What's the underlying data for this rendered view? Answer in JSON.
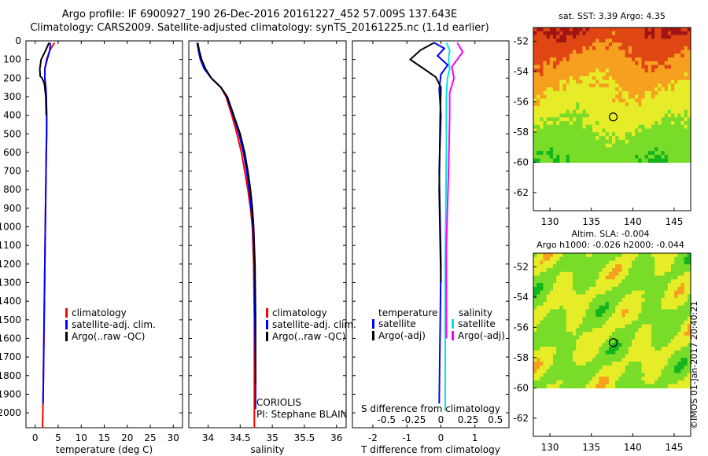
{
  "header": {
    "line1": "Argo profile: IF 6900927_190 26-Dec-2016 20161227_452 57.009S 137.643E",
    "line2": "Climatology: CARS2009. Satellite-adjusted climatology: synTS_20161225.nc (1.1d earlier)"
  },
  "chart_data": [
    {
      "type": "line",
      "name": "temperature-profile",
      "xlabel": "temperature (deg C)",
      "ylabel": "",
      "xlim": [
        -2,
        32
      ],
      "ylim": [
        2080,
        0
      ],
      "xticks": [
        0,
        5,
        10,
        15,
        20,
        25,
        30
      ],
      "yticks": [
        0,
        100,
        200,
        300,
        400,
        500,
        600,
        700,
        800,
        900,
        1000,
        1100,
        1200,
        1300,
        1400,
        1500,
        1600,
        1700,
        1800,
        1900,
        2000
      ],
      "legend": [
        "climatology",
        "satellite-adj. clim.",
        "Argo(..raw -QC)"
      ],
      "series": [
        {
          "name": "climatology",
          "color": "#ff0000",
          "x": [
            4.2,
            3.2,
            2.5,
            2.1,
            2.1,
            2.3,
            2.4,
            2.5,
            2.5,
            2.4,
            2.3,
            2.2,
            2.1,
            2.0,
            1.9,
            1.8,
            1.7,
            1.6
          ],
          "y": [
            10,
            50,
            100,
            150,
            200,
            250,
            300,
            400,
            500,
            600,
            800,
            1000,
            1200,
            1400,
            1600,
            1800,
            1950,
            2080
          ]
        },
        {
          "name": "satellite-adj. clim.",
          "color": "#0000ff",
          "x": [
            3.3,
            3.2,
            2.6,
            2.1,
            2.1,
            2.3,
            2.4,
            2.5,
            2.5,
            2.4,
            2.3,
            2.2,
            2.1,
            2.0,
            1.9,
            1.8,
            1.7
          ],
          "y": [
            10,
            50,
            100,
            150,
            200,
            250,
            300,
            400,
            500,
            600,
            800,
            1000,
            1200,
            1400,
            1600,
            1800,
            1950
          ]
        },
        {
          "name": "Argo(..raw -QC)",
          "color": "#000000",
          "x": [
            3.0,
            2.3,
            1.3,
            1.0,
            1.1,
            1.5,
            2.0,
            2.3,
            2.4
          ],
          "y": [
            10,
            50,
            100,
            150,
            190,
            200,
            230,
            300,
            400
          ]
        }
      ]
    },
    {
      "type": "line",
      "name": "salinity-profile",
      "xlabel": "salinity",
      "xlim": [
        33.7,
        36.15
      ],
      "ylim": [
        2080,
        0
      ],
      "xticks": [
        34,
        34.5,
        35,
        35.5,
        36
      ],
      "xtick_labels": [
        "34",
        "34.5",
        "35",
        "35.5",
        "36"
      ],
      "legend": [
        "climatology",
        "satellite-adj. clim.",
        "Argo(..raw -QC)"
      ],
      "annotation": [
        "CORIOLIS",
        "PI: Stephane BLAIN"
      ],
      "series": [
        {
          "name": "climatology",
          "color": "#ff0000",
          "x": [
            33.84,
            33.85,
            33.9,
            33.95,
            34.05,
            34.2,
            34.28,
            34.37,
            34.45,
            34.52,
            34.57,
            34.62,
            34.66,
            34.69,
            34.71,
            34.72,
            34.72,
            34.72
          ],
          "y": [
            10,
            50,
            100,
            150,
            200,
            250,
            300,
            400,
            500,
            600,
            700,
            800,
            900,
            1000,
            1200,
            1500,
            1800,
            2080
          ]
        },
        {
          "name": "satellite-adj. clim.",
          "color": "#0000ff",
          "x": [
            33.83,
            33.85,
            33.88,
            33.94,
            34.05,
            34.2,
            34.29,
            34.39,
            34.48,
            34.55,
            34.6,
            34.64,
            34.67,
            34.7,
            34.72,
            34.73,
            34.74,
            34.74
          ],
          "y": [
            10,
            50,
            100,
            150,
            200,
            250,
            300,
            400,
            500,
            600,
            700,
            800,
            900,
            1000,
            1200,
            1500,
            1800,
            1980
          ]
        },
        {
          "name": "Argo(..raw -QC)",
          "color": "#000000",
          "x": [
            33.84,
            33.86,
            33.9,
            33.96,
            34.05,
            34.2,
            34.3,
            34.4,
            34.5,
            34.57,
            34.62,
            34.66,
            34.69,
            34.71,
            34.73,
            34.74,
            34.74
          ],
          "y": [
            10,
            50,
            100,
            150,
            200,
            250,
            300,
            400,
            500,
            600,
            700,
            800,
            900,
            1000,
            1200,
            1500,
            1850
          ]
        }
      ]
    },
    {
      "type": "line",
      "name": "difference-from-climatology",
      "xlabel": "T difference from climatology",
      "xlabel_top": "S difference from climatology",
      "xlim": [
        -2.6,
        2.0
      ],
      "ylim": [
        2080,
        0
      ],
      "xticks": [
        -2,
        -1,
        0,
        1
      ],
      "xtick_labels": [
        "-2",
        "-1",
        "0",
        "1"
      ],
      "xticks_top": [
        -0.5,
        -0.25,
        0,
        0.25,
        0.5
      ],
      "xtick_labels_top": [
        "-0.5",
        "-0.25",
        "0",
        "0.25",
        "0.5"
      ],
      "legend_titles": [
        "temperature",
        "salinity"
      ],
      "legend": [
        "satellite",
        "Argo(-adj)",
        "satellite",
        "Argo(-adj)"
      ],
      "series": [
        {
          "name": "temperature satellite",
          "color": "#0000ff",
          "x": [
            -0.2,
            0.1,
            -0.1,
            0.2,
            0.0,
            -0.05,
            0.0,
            -0.05,
            0.0,
            -0.05
          ],
          "y": [
            10,
            40,
            80,
            130,
            180,
            260,
            400,
            700,
            1200,
            1950
          ]
        },
        {
          "name": "temperature Argo(-adj)",
          "color": "#000000",
          "x": [
            -0.2,
            -0.6,
            -0.9,
            -0.5,
            -0.15,
            0.0,
            -0.02,
            -0.05,
            0.0
          ],
          "y": [
            10,
            50,
            100,
            150,
            195,
            250,
            400,
            800,
            1300
          ]
        },
        {
          "name": "salinity satellite",
          "color": "#00e5e5",
          "x": [
            0.05,
            0.08,
            0.07,
            0.08,
            0.06,
            0.05,
            0.05,
            0.04,
            0.04
          ],
          "y": [
            10,
            50,
            100,
            150,
            200,
            300,
            600,
            1200,
            1990
          ]
        },
        {
          "name": "salinity Argo(-adj)",
          "color": "#ff00ff",
          "x": [
            0.15,
            0.2,
            0.1,
            0.12,
            0.08,
            0.08,
            0.07,
            0.05,
            0.05
          ],
          "y": [
            10,
            60,
            140,
            200,
            280,
            400,
            700,
            1100,
            1600
          ]
        }
      ]
    },
    {
      "type": "heatmap",
      "name": "sst-map",
      "title": "sat. SST: 3.39 Argo: 4.35",
      "xlim": [
        128,
        147
      ],
      "ylim": [
        -63.2,
        -51.1
      ],
      "xticks": [
        130,
        135,
        140,
        145
      ],
      "yticks": [
        -52,
        -54,
        -56,
        -58,
        -60,
        -62
      ],
      "marker": {
        "lon": 137.643,
        "lat": -57.009
      }
    },
    {
      "type": "heatmap",
      "name": "sla-map",
      "title": [
        "Altim. SLA: -0.004",
        "Argo h1000: -0.026 h2000: -0.044"
      ],
      "xlim": [
        128,
        147
      ],
      "ylim": [
        -63.2,
        -51.1
      ],
      "xticks": [
        130,
        135,
        140,
        145
      ],
      "yticks": [
        -52,
        -54,
        -56,
        -58,
        -60,
        -62
      ],
      "marker": {
        "lon": 137.643,
        "lat": -57.009
      }
    }
  ],
  "credit": "©IMOS 01-Jan-2017 20:40:21"
}
